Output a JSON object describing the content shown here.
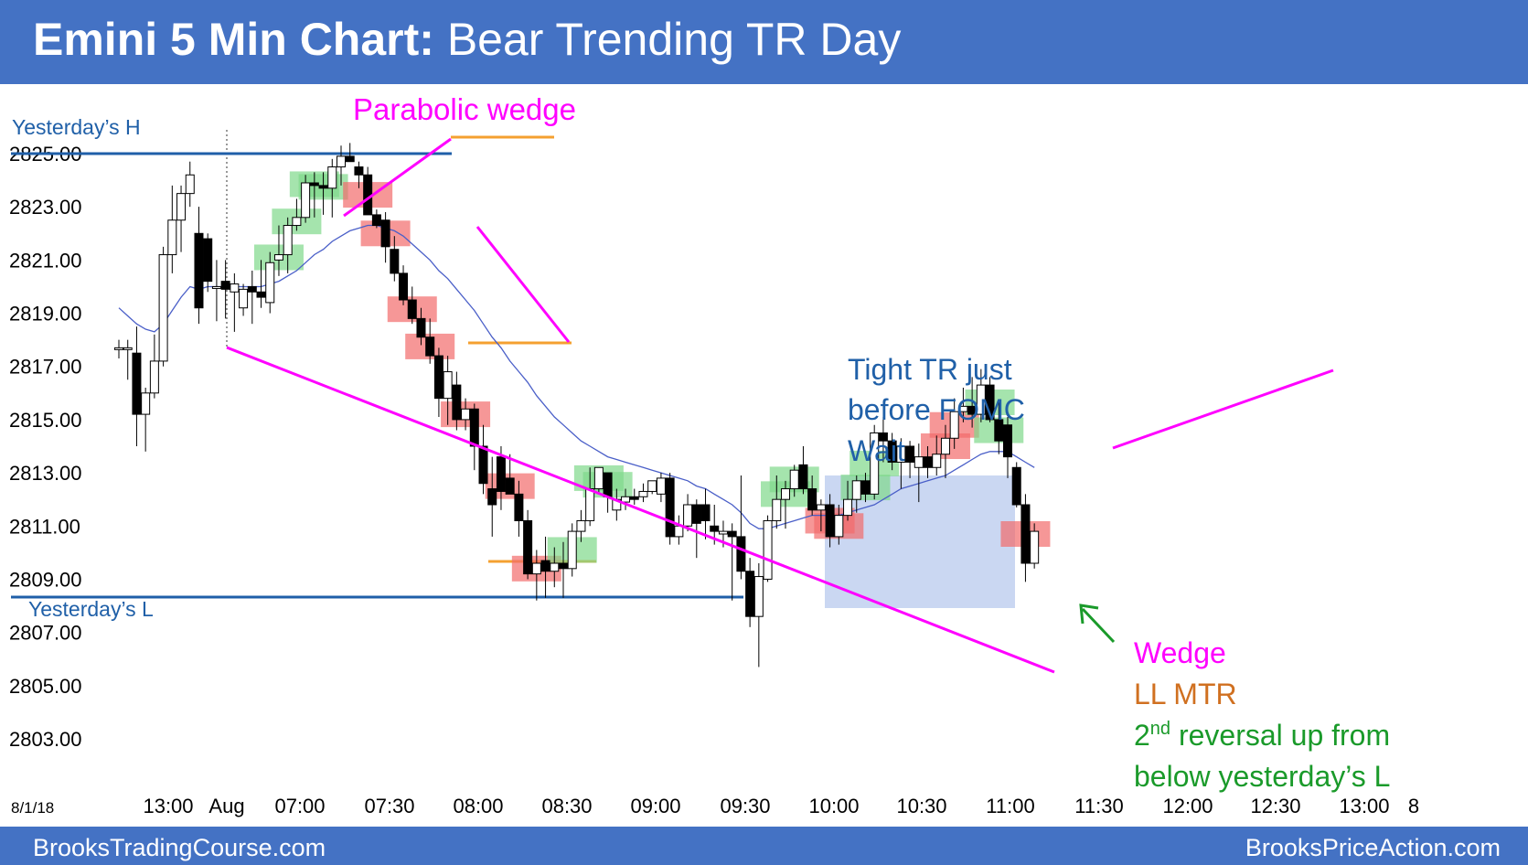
{
  "header": {
    "title_bold": "Emini 5 Min Chart:",
    "title_rest": " Bear Trending TR Day",
    "bg_color": "#4472c4"
  },
  "footer": {
    "left": "BrooksTradingCourse.com",
    "right": "BrooksPriceAction.com"
  },
  "chart_data": {
    "type": "candlestick",
    "date_label": "8/1/18",
    "y_ticks": [
      "2825.00",
      "2823.00",
      "2821.00",
      "2819.00",
      "2817.00",
      "2815.00",
      "2813.00",
      "2811.00",
      "2809.00",
      "2807.00",
      "2805.00",
      "2803.00"
    ],
    "ylim": [
      2801.5,
      2826.3
    ],
    "x_ticks": [
      "13:00",
      "Aug",
      "07:00",
      "07:30",
      "08:00",
      "08:30",
      "09:00",
      "09:30",
      "10:00",
      "10:30",
      "11:00",
      "11:30",
      "12:00",
      "12:30",
      "13:00",
      "8"
    ],
    "bars": [
      [
        2817.7,
        2818,
        2817.3,
        2817.7
      ],
      [
        2817.7,
        2818,
        2816.5,
        2817.7
      ],
      [
        2817.5,
        2818.5,
        2814,
        2815.2
      ],
      [
        2815.2,
        2816.2,
        2813.8,
        2816
      ],
      [
        2816,
        2818.2,
        2815.8,
        2817.2
      ],
      [
        2817.2,
        2821.5,
        2817,
        2821.2
      ],
      [
        2821.2,
        2823.8,
        2820.5,
        2822.5
      ],
      [
        2822.5,
        2823.8,
        2821.3,
        2823.5
      ],
      [
        2823.5,
        2824.7,
        2823,
        2824.2
      ],
      [
        2822,
        2823,
        2818.6,
        2819.2
      ],
      [
        2821.8,
        2822,
        2819.8,
        2820.2
      ],
      [
        2820,
        2821,
        2818.7,
        2820
      ],
      [
        2820.2,
        2821,
        2818.8,
        2819.9
      ],
      [
        2819.8,
        2820.5,
        2818.3,
        2820.1
      ],
      [
        2819.2,
        2820.1,
        2818.9,
        2819.9
      ],
      [
        2820,
        2820.6,
        2818.6,
        2819.8
      ],
      [
        2819.8,
        2821,
        2819.2,
        2819.6
      ],
      [
        2819.4,
        2821.3,
        2819,
        2820.9
      ],
      [
        2821,
        2822.3,
        2820.4,
        2821.2
      ],
      [
        2821.2,
        2822.6,
        2820.5,
        2822.3
      ],
      [
        2822.3,
        2823.3,
        2822.1,
        2822.6
      ],
      [
        2822.6,
        2824.2,
        2822.4,
        2823.9
      ],
      [
        2823.9,
        2824.3,
        2822.6,
        2823.8
      ],
      [
        2823.8,
        2824.3,
        2822.7,
        2823.7
      ],
      [
        2823.7,
        2824.8,
        2822.6,
        2824.5
      ],
      [
        2824.5,
        2825.3,
        2823.8,
        2824.9
      ],
      [
        2824.9,
        2825.4,
        2824.7,
        2824.7
      ],
      [
        2824.5,
        2824.7,
        2823.7,
        2824.2
      ],
      [
        2824.2,
        2824.5,
        2822.7,
        2822.7
      ],
      [
        2822.7,
        2822.9,
        2822.2,
        2822.3
      ],
      [
        2822.5,
        2822.8,
        2820.9,
        2821.5
      ],
      [
        2821.4,
        2821.9,
        2820.2,
        2820.5
      ],
      [
        2820.5,
        2820.8,
        2819.3,
        2819.5
      ],
      [
        2819.5,
        2820,
        2818.6,
        2818.8
      ],
      [
        2818.8,
        2819.2,
        2817.8,
        2818.1
      ],
      [
        2818.1,
        2818.8,
        2817.1,
        2817.4
      ],
      [
        2817.4,
        2817.7,
        2815.1,
        2815.8
      ],
      [
        2815.8,
        2817.4,
        2814.8,
        2816.8
      ],
      [
        2816.3,
        2816.8,
        2814.6,
        2815
      ],
      [
        2815,
        2815.8,
        2814.6,
        2815.4
      ],
      [
        2815.4,
        2815.6,
        2813.1,
        2814
      ],
      [
        2814,
        2814.8,
        2812.2,
        2812.6
      ],
      [
        2812.4,
        2813.6,
        2810.6,
        2811.8
      ],
      [
        2813.6,
        2814,
        2811.6,
        2812.3
      ],
      [
        2812.8,
        2813.7,
        2812.2,
        2812.2
      ],
      [
        2812.2,
        2812.7,
        2810.6,
        2811.2
      ],
      [
        2811.2,
        2811.6,
        2809,
        2809.2
      ],
      [
        2809.2,
        2810.1,
        2808.2,
        2809.6
      ],
      [
        2809.7,
        2810.6,
        2808.3,
        2809.3
      ],
      [
        2809.3,
        2810.2,
        2808.7,
        2809.6
      ],
      [
        2809.6,
        2810.4,
        2808.3,
        2809.4
      ],
      [
        2809.4,
        2811.1,
        2809.1,
        2810.8
      ],
      [
        2810.8,
        2811.6,
        2810.4,
        2811.2
      ],
      [
        2811.2,
        2813.2,
        2811,
        2812.4
      ],
      [
        2812.4,
        2813.2,
        2812.2,
        2813.2
      ],
      [
        2813,
        2813,
        2811.5,
        2812.1
      ],
      [
        2811.6,
        2812.4,
        2811.2,
        2812
      ],
      [
        2811.9,
        2812.4,
        2811.6,
        2812.1
      ],
      [
        2812.1,
        2812.4,
        2811.8,
        2812
      ],
      [
        2812.1,
        2812.6,
        2811.9,
        2812.3
      ],
      [
        2812.3,
        2812.7,
        2812.2,
        2812.7
      ],
      [
        2812.2,
        2813,
        2811.9,
        2812.8
      ],
      [
        2812.8,
        2813,
        2810.3,
        2810.6
      ],
      [
        2810.6,
        2811.4,
        2810.3,
        2811
      ],
      [
        2811,
        2812.2,
        2810.8,
        2811.8
      ],
      [
        2811.8,
        2812,
        2809.8,
        2811.1
      ],
      [
        2811.8,
        2812.4,
        2810.5,
        2811.2
      ],
      [
        2811,
        2811.8,
        2810.3,
        2810.8
      ],
      [
        2810.7,
        2811.2,
        2810.2,
        2810.8
      ],
      [
        2810.8,
        2811.1,
        2808.2,
        2810.6
      ],
      [
        2810.6,
        2812.9,
        2809,
        2809.3
      ],
      [
        2809.3,
        2809.8,
        2807.2,
        2807.6
      ],
      [
        2807.6,
        2809.6,
        2805.7,
        2809.1
      ],
      [
        2809,
        2811.4,
        2808.9,
        2811.2
      ],
      [
        2811.2,
        2812.9,
        2810.9,
        2812
      ],
      [
        2812,
        2812.7,
        2810.9,
        2812.4
      ],
      [
        2812.4,
        2813.3,
        2812.1,
        2813.1
      ],
      [
        2813.3,
        2814,
        2812.2,
        2812.4
      ],
      [
        2812.4,
        2812.9,
        2811.4,
        2811.6
      ],
      [
        2811.6,
        2812,
        2810.8,
        2811.8
      ],
      [
        2811.8,
        2812.2,
        2810.2,
        2810.6
      ],
      [
        2810.6,
        2811.8,
        2810.3,
        2811.4
      ],
      [
        2811.4,
        2812.7,
        2811.2,
        2812
      ],
      [
        2812,
        2812.9,
        2811.5,
        2812.7
      ],
      [
        2812.7,
        2813,
        2811.9,
        2812.2
      ],
      [
        2812.2,
        2814.8,
        2812,
        2814.5
      ],
      [
        2814.5,
        2815.1,
        2813.4,
        2814.2
      ],
      [
        2814.2,
        2814.5,
        2813.1,
        2813.4
      ],
      [
        2813.4,
        2814.3,
        2812.4,
        2814
      ],
      [
        2814,
        2814.2,
        2812.8,
        2813.4
      ],
      [
        2813.2,
        2814.1,
        2811.9,
        2813.6
      ],
      [
        2813.6,
        2814,
        2812.8,
        2813.2
      ],
      [
        2813.2,
        2814.4,
        2812.9,
        2813.7
      ],
      [
        2813.7,
        2814.8,
        2812.8,
        2814.3
      ],
      [
        2814.3,
        2815.8,
        2813.9,
        2815.3
      ],
      [
        2815.3,
        2816.2,
        2814.9,
        2815.5
      ],
      [
        2815.5,
        2816.6,
        2814.7,
        2815.2
      ],
      [
        2815.2,
        2816.9,
        2814.9,
        2816.3
      ],
      [
        2816.3,
        2816.6,
        2814.9,
        2815
      ],
      [
        2815,
        2815.7,
        2813.7,
        2814.2
      ],
      [
        2814.8,
        2815.1,
        2812.8,
        2813.6
      ],
      [
        2813.2,
        2813.4,
        2811.7,
        2811.8
      ],
      [
        2811.8,
        2812.2,
        2808.9,
        2809.6
      ],
      [
        2809.6,
        2811.1,
        2809.4,
        2810.8
      ]
    ],
    "ema": [
      2819.2,
      2818.9,
      2818.6,
      2818.4,
      2818.3,
      2818.6,
      2819.1,
      2819.6,
      2820,
      2819.9,
      2820,
      2820,
      2820,
      2820,
      2820,
      2820,
      2820,
      2820.1,
      2820.2,
      2820.4,
      2820.6,
      2820.9,
      2821.2,
      2821.4,
      2821.7,
      2821.9,
      2822.1,
      2822.2,
      2822.3,
      2822.3,
      2822.2,
      2822.1,
      2821.9,
      2821.6,
      2821.3,
      2821,
      2820.6,
      2820.3,
      2819.9,
      2819.5,
      2819.1,
      2818.6,
      2818.1,
      2817.7,
      2817.2,
      2816.8,
      2816.4,
      2815.9,
      2815.5,
      2815.1,
      2814.8,
      2814.5,
      2814.2,
      2814,
      2813.8,
      2813.6,
      2813.5,
      2813.4,
      2813.3,
      2813.2,
      2813.1,
      2813,
      2812.9,
      2812.8,
      2812.7,
      2812.5,
      2812.4,
      2812.2,
      2812,
      2811.8,
      2811.5,
      2811.1,
      2810.9,
      2810.9,
      2811,
      2811.1,
      2811.2,
      2811.3,
      2811.4,
      2811.4,
      2811.4,
      2811.4,
      2811.5,
      2811.6,
      2811.7,
      2811.8,
      2812,
      2812.2,
      2812.4,
      2812.5,
      2812.6,
      2812.7,
      2812.8,
      2812.9,
      2813.1,
      2813.3,
      2813.5,
      2813.7,
      2813.8,
      2813.8,
      2813.8,
      2813.6,
      2813.4,
      2813.2
    ]
  },
  "annotations": {
    "parabolic_wedge": "Parabolic wedge",
    "yesterdays_high": "Yesterday’s H",
    "yesterdays_low": "Yesterday’s L",
    "tight_tr_1": "Tight TR just",
    "tight_tr_2": "before FOMC",
    "tight_tr_3": "Wait",
    "wedge": "Wedge",
    "ll_mtr": "LL MTR",
    "reversal_sup_pre": "2",
    "reversal_sup": "nd",
    "reversal_1": " reversal up from",
    "reversal_2": "below yesterday’s L"
  },
  "colors": {
    "accent": "#4472c4",
    "magenta": "#ff00ff",
    "orange": "#f4a030",
    "blue_line": "#1f5fa8",
    "green_text": "#1a9a2a",
    "orange_text": "#d07020",
    "text_blue": "#2060a8"
  }
}
